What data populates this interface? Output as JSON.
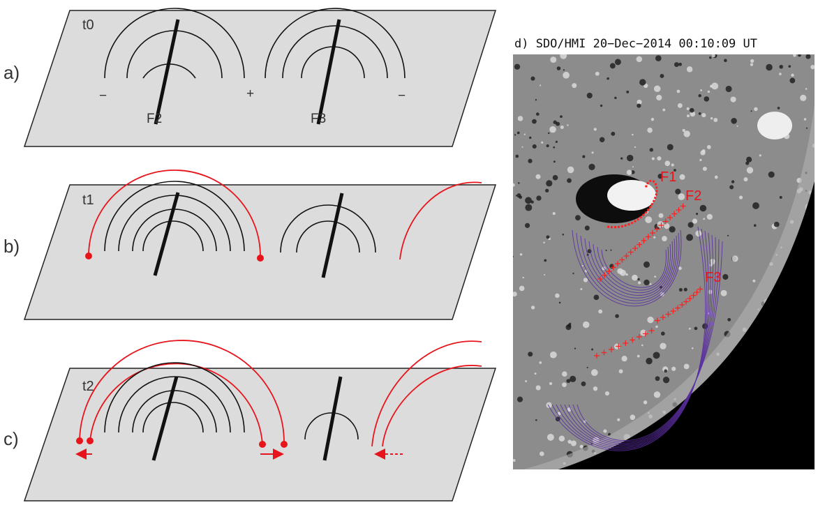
{
  "panels": [
    {
      "label": "a)",
      "time": "t0",
      "polarities": [
        "−",
        "+",
        "−"
      ],
      "filaments": [
        "F2",
        "F3"
      ]
    },
    {
      "label": "b)",
      "time": "t1"
    },
    {
      "label": "c)",
      "time": "t2"
    }
  ],
  "magnetogram": {
    "title": "d) SDO/HMI 20−Dec−2014 00:10:09 UT",
    "filaments": [
      "F1",
      "F2",
      "F3"
    ]
  }
}
